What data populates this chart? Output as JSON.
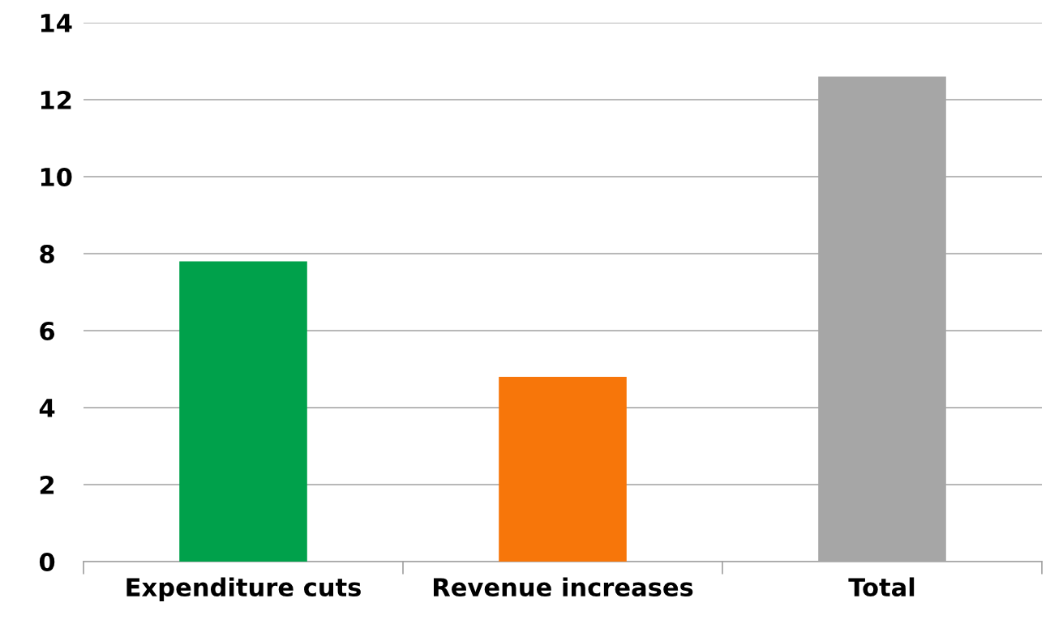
{
  "chart_data": {
    "type": "bar",
    "categories": [
      "Expenditure cuts",
      "Revenue increases",
      "Total"
    ],
    "values": [
      7.8,
      4.8,
      12.6
    ],
    "colors": [
      "#00a14b",
      "#f7760a",
      "#a6a6a6"
    ],
    "ylim": [
      0,
      14
    ],
    "yticks": [
      0,
      2,
      4,
      6,
      8,
      10,
      12,
      14
    ],
    "grid": "y"
  }
}
